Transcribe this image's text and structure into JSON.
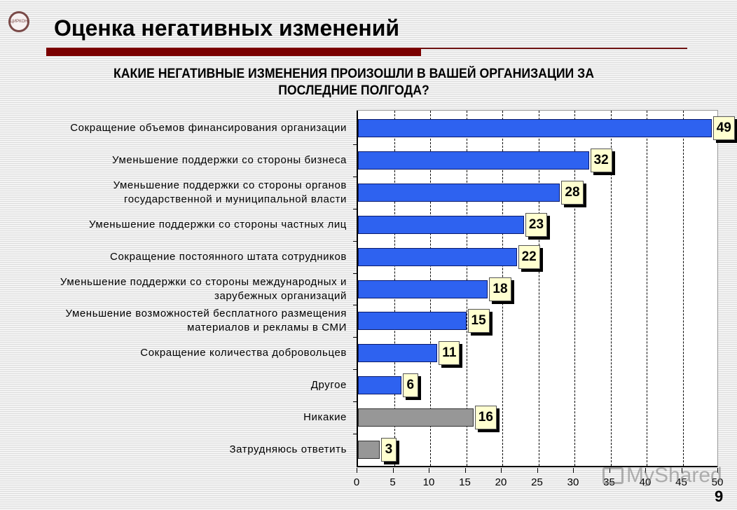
{
  "header": {
    "logo_text": "ЦИРКОН",
    "title": "Оценка негативных изменений"
  },
  "chart": {
    "title_line1": "КАКИЕ НЕГАТИВНЫЕ ИЗМЕНЕНИЯ ПРОИЗОШЛИ В ВАШЕЙ ОРГАНИЗАЦИИ ЗА",
    "title_line2": "ПОСЛЕДНИЕ ПОЛГОДА?",
    "colors": {
      "primary_bar": "#2e62f0",
      "secondary_bar": "#979797",
      "label_bg": "#ffffd0"
    }
  },
  "chart_data": {
    "type": "bar",
    "orientation": "horizontal",
    "title": "КАКИЕ НЕГАТИВНЫЕ ИЗМЕНЕНИЯ ПРОИЗОШЛИ В ВАШЕЙ ОРГАНИЗАЦИИ ЗА ПОСЛЕДНИЕ ПОЛГОДА?",
    "xlabel": "",
    "ylabel": "",
    "xlim": [
      0,
      50
    ],
    "xticks": [
      "0",
      "5",
      "10",
      "15",
      "20",
      "25",
      "30",
      "35",
      "40",
      "45",
      "50"
    ],
    "grid": "vertical dashed",
    "categories": [
      "Сокращение объемов финансирования организации",
      "Уменьшение поддержки со стороны бизнеса",
      "Уменьшение поддержки со стороны органов государственной и муниципальной власти",
      "Уменьшение поддержки со стороны частных лиц",
      "Сокращение постоянного штата сотрудников",
      "Уменьшение поддержки со стороны международных и зарубежных организаций",
      "Уменьшение возможностей бесплатного размещения материалов и рекламы в СМИ",
      "Сокращение количества добровольцев",
      "Другое",
      "Никакие",
      "Затрудняюсь ответить"
    ],
    "values": [
      49,
      32,
      28,
      23,
      22,
      18,
      15,
      11,
      6,
      16,
      3
    ],
    "bar_colors": [
      "blue",
      "blue",
      "blue",
      "blue",
      "blue",
      "blue",
      "blue",
      "blue",
      "blue",
      "gray",
      "gray"
    ]
  },
  "labels": [
    [
      "Сокращение объемов финансирования организации"
    ],
    [
      "Уменьшение поддержки со стороны бизнеса"
    ],
    [
      "Уменьшение поддержки со стороны органов",
      "государственной и муниципальной власти"
    ],
    [
      "Уменьшение поддержки со стороны частных лиц"
    ],
    [
      "Сокращение постоянного штата сотрудников"
    ],
    [
      "Уменьшение поддержки со стороны международных и",
      "зарубежных организаций"
    ],
    [
      "Уменьшение возможностей бесплатного размещения",
      "материалов и рекламы в СМИ"
    ],
    [
      "Сокращение количества добровольцев"
    ],
    [
      "Другое"
    ],
    [
      "Никакие"
    ],
    [
      "Затрудняюсь ответить"
    ]
  ],
  "watermark": "MyShared",
  "page_number": "9"
}
